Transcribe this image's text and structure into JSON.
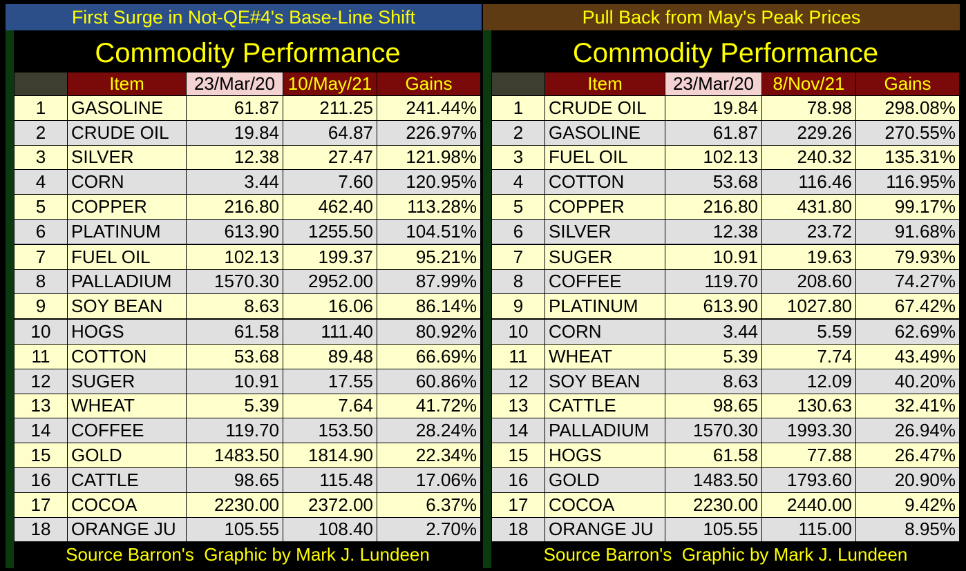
{
  "chart_data": [
    {
      "type": "table",
      "banner": "First Surge in Not-QE#4's Base-Line Shift",
      "title": "Commodity Performance",
      "columns": [
        "",
        "Item",
        "23/Mar/20",
        "10/May/21",
        "Gains"
      ],
      "rows": [
        [
          "1",
          "GASOLINE",
          "61.87",
          "211.25",
          "241.44%"
        ],
        [
          "2",
          "CRUDE OIL",
          "19.84",
          "64.87",
          "226.97%"
        ],
        [
          "3",
          "SILVER",
          "12.38",
          "27.47",
          "121.98%"
        ],
        [
          "4",
          "CORN",
          "3.44",
          "7.60",
          "120.95%"
        ],
        [
          "5",
          "COPPER",
          "216.80",
          "462.40",
          "113.28%"
        ],
        [
          "6",
          "PLATINUM",
          "613.90",
          "1255.50",
          "104.51%"
        ],
        [
          "7",
          "FUEL OIL",
          "102.13",
          "199.37",
          "95.21%"
        ],
        [
          "8",
          "PALLADIUM",
          "1570.30",
          "2952.00",
          "87.99%"
        ],
        [
          "9",
          "SOY BEAN",
          "8.63",
          "16.06",
          "86.14%"
        ],
        [
          "10",
          "HOGS",
          "61.58",
          "111.40",
          "80.92%"
        ],
        [
          "11",
          "COTTON",
          "53.68",
          "89.48",
          "66.69%"
        ],
        [
          "12",
          "SUGER",
          "10.91",
          "17.55",
          "60.86%"
        ],
        [
          "13",
          "WHEAT",
          "5.39",
          "7.64",
          "41.72%"
        ],
        [
          "14",
          "COFFEE",
          "119.70",
          "153.50",
          "28.24%"
        ],
        [
          "15",
          "GOLD",
          "1483.50",
          "1814.90",
          "22.34%"
        ],
        [
          "16",
          "CATTLE",
          "98.65",
          "115.48",
          "17.06%"
        ],
        [
          "17",
          "COCOA",
          "2230.00",
          "2372.00",
          "6.37%"
        ],
        [
          "18",
          "ORANGE JU",
          "105.55",
          "108.40",
          "2.70%"
        ]
      ],
      "source": "Source Barron's  Graphic by Mark J. Lundeen"
    },
    {
      "type": "table",
      "banner": "Pull Back from May's Peak Prices",
      "title": "Commodity Performance",
      "columns": [
        "",
        "Item",
        "23/Mar/20",
        "8/Nov/21",
        "Gains"
      ],
      "rows": [
        [
          "1",
          "CRUDE OIL",
          "19.84",
          "78.98",
          "298.08%"
        ],
        [
          "2",
          "GASOLINE",
          "61.87",
          "229.26",
          "270.55%"
        ],
        [
          "3",
          "FUEL OIL",
          "102.13",
          "240.32",
          "135.31%"
        ],
        [
          "4",
          "COTTON",
          "53.68",
          "116.46",
          "116.95%"
        ],
        [
          "5",
          "COPPER",
          "216.80",
          "431.80",
          "99.17%"
        ],
        [
          "6",
          "SILVER",
          "12.38",
          "23.72",
          "91.68%"
        ],
        [
          "7",
          "SUGER",
          "10.91",
          "19.63",
          "79.93%"
        ],
        [
          "8",
          "COFFEE",
          "119.70",
          "208.60",
          "74.27%"
        ],
        [
          "9",
          "PLATINUM",
          "613.90",
          "1027.80",
          "67.42%"
        ],
        [
          "10",
          "CORN",
          "3.44",
          "5.59",
          "62.69%"
        ],
        [
          "11",
          "WHEAT",
          "5.39",
          "7.74",
          "43.49%"
        ],
        [
          "12",
          "SOY BEAN",
          "8.63",
          "12.09",
          "40.20%"
        ],
        [
          "13",
          "CATTLE",
          "98.65",
          "130.63",
          "32.41%"
        ],
        [
          "14",
          "PALLADIUM",
          "1570.30",
          "1993.30",
          "26.94%"
        ],
        [
          "15",
          "HOGS",
          "61.58",
          "77.88",
          "26.47%"
        ],
        [
          "16",
          "GOLD",
          "1483.50",
          "1793.60",
          "20.90%"
        ],
        [
          "17",
          "COCOA",
          "2230.00",
          "2440.00",
          "9.42%"
        ],
        [
          "18",
          "ORANGE JU",
          "105.55",
          "115.00",
          "8.95%"
        ]
      ],
      "source": "Source Barron's  Graphic by Mark J. Lundeen"
    }
  ],
  "colors": {
    "text_yellow": "#ffff00",
    "banner_left": "#2c4f8a",
    "banner_right": "#5e3b12",
    "header_maroon": "#7a0a0a",
    "header_pink": "#f4d2d2",
    "row_yellow": "#ffffcc",
    "row_gray": "#e0e0e0"
  }
}
